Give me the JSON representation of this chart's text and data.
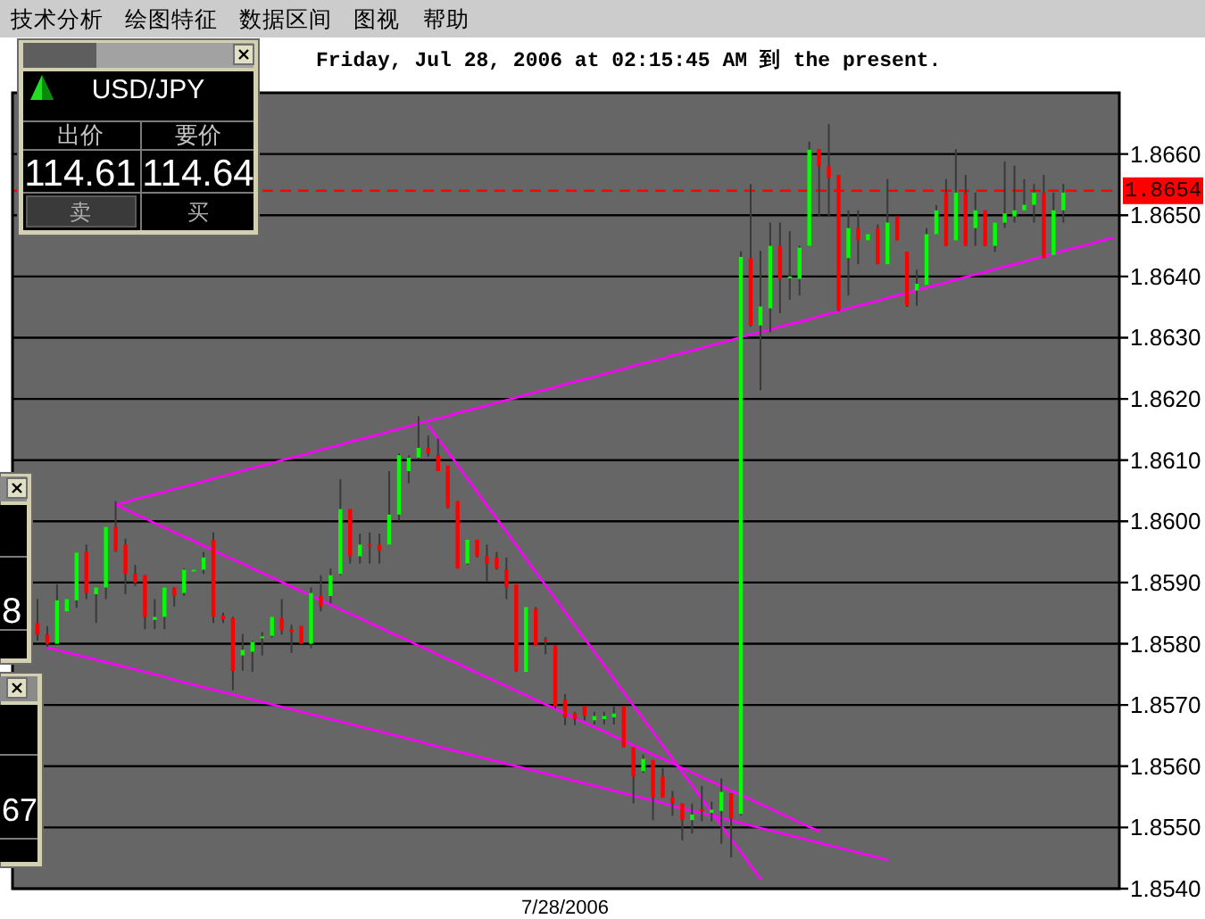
{
  "chart_data": [
    {
      "type": "candlestick",
      "title": "Friday, Jul 28, 2006 at 02:15:45 AM 到 the present.",
      "categories": [
        null,
        null,
        null,
        null,
        null,
        null,
        null,
        null,
        null,
        null,
        null,
        null,
        null,
        null,
        null,
        null,
        null,
        null,
        null,
        null,
        null,
        null,
        null,
        null,
        null,
        null,
        null,
        null,
        null,
        null,
        null,
        null,
        null,
        null,
        null,
        null,
        null,
        null,
        null,
        null,
        null,
        null,
        null,
        null,
        null,
        null,
        null,
        null,
        null,
        null,
        null,
        null,
        null,
        null,
        "7/28/2006",
        null,
        null,
        null,
        null,
        null,
        null,
        null,
        null,
        null,
        null,
        null,
        null,
        null,
        null,
        null,
        null,
        null,
        null,
        null,
        null,
        null,
        null,
        null,
        null,
        null,
        null,
        null,
        null,
        null,
        null,
        null,
        null,
        null,
        null,
        null,
        null,
        null,
        null,
        null,
        null,
        null,
        null,
        null,
        null,
        null,
        null,
        null,
        null,
        null,
        null,
        null,
        null,
        null,
        null,
        null,
        null
      ],
      "series": [
        {
          "type": "candlestick",
          "ohlc": [
            [
              1.85834,
              1.85873,
              1.85805,
              1.85815
            ],
            [
              1.85815,
              1.85829,
              1.85795,
              1.858
            ],
            [
              1.858,
              1.85897,
              1.858,
              1.85871
            ],
            [
              1.85853,
              1.85873,
              1.85853,
              1.85873
            ],
            [
              1.85871,
              1.85949,
              1.85859,
              1.85949
            ],
            [
              1.8595,
              1.85962,
              1.85873,
              1.85883
            ],
            [
              1.85881,
              1.85892,
              1.85834,
              1.85892
            ],
            [
              1.85892,
              1.85991,
              1.85873,
              1.85991
            ],
            [
              1.85991,
              1.86033,
              1.8595,
              1.85952
            ],
            [
              1.85962,
              1.85972,
              1.85881,
              1.85914
            ],
            [
              1.85914,
              1.85929,
              1.85894,
              1.859
            ],
            [
              1.85912,
              1.85912,
              1.85824,
              1.85844
            ],
            [
              1.85839,
              1.85873,
              1.85824,
              1.85844
            ],
            [
              1.85844,
              1.85892,
              1.85824,
              1.85892
            ],
            [
              1.85892,
              1.85892,
              1.85861,
              1.85878
            ],
            [
              1.85883,
              1.85923,
              1.85878,
              1.85921
            ],
            [
              1.85918,
              1.85921,
              1.85918,
              1.85921
            ],
            [
              1.85921,
              1.8595,
              1.85914,
              1.85941
            ],
            [
              1.8597,
              1.85982,
              1.85834,
              1.85844
            ],
            [
              1.85846,
              1.85851,
              1.85834,
              1.8584
            ],
            [
              1.85842,
              1.85844,
              1.85724,
              1.85756
            ],
            [
              1.85781,
              1.85816,
              1.85756,
              1.8579
            ],
            [
              1.85787,
              1.85805,
              1.85754,
              1.85803
            ],
            [
              1.8581,
              1.85819,
              1.85781,
              1.85812
            ],
            [
              1.85813,
              1.85844,
              1.8581,
              1.85844
            ],
            [
              1.85842,
              1.85873,
              1.85815,
              1.85822
            ],
            [
              1.85824,
              1.85831,
              1.85785,
              1.85819
            ],
            [
              1.85829,
              1.85829,
              1.858,
              1.858
            ],
            [
              1.858,
              1.85892,
              1.85793,
              1.85883
            ],
            [
              1.85878,
              1.85912,
              1.85853,
              1.85861
            ],
            [
              1.85878,
              1.85923,
              1.85866,
              1.85912
            ],
            [
              1.85914,
              1.86069,
              1.85912,
              1.8602
            ],
            [
              1.8602,
              1.8602,
              1.85931,
              1.85943
            ],
            [
              1.85943,
              1.8598,
              1.85931,
              1.85962
            ],
            [
              1.85962,
              1.85982,
              1.85931,
              1.8596
            ],
            [
              1.85962,
              1.8598,
              1.85931,
              1.85952
            ],
            [
              1.85962,
              1.86082,
              1.85962,
              1.86011
            ],
            [
              1.86011,
              1.86111,
              1.86001,
              1.86108
            ],
            [
              1.86082,
              1.86108,
              1.86062,
              1.86104
            ],
            [
              1.86104,
              1.86172,
              1.86101,
              1.8612
            ],
            [
              1.8612,
              1.8614,
              1.86106,
              1.86111
            ],
            [
              1.86108,
              1.86135,
              1.86082,
              1.86082
            ],
            [
              1.86091,
              1.86091,
              1.86021,
              1.86023
            ],
            [
              1.86033,
              1.86033,
              1.85923,
              1.85923
            ],
            [
              1.85931,
              1.8597,
              1.85929,
              1.8597
            ],
            [
              1.8597,
              1.8597,
              1.85941,
              1.85943
            ],
            [
              1.85943,
              1.85962,
              1.85902,
              1.85931
            ],
            [
              1.85941,
              1.8595,
              1.85921,
              1.85923
            ],
            [
              1.85921,
              1.85941,
              1.85873,
              1.85892
            ],
            [
              1.85897,
              1.85897,
              1.85754,
              1.85756
            ],
            [
              1.85754,
              1.8586,
              1.85754,
              1.8586
            ],
            [
              1.85857,
              1.8586,
              1.85797,
              1.85797
            ],
            [
              1.85808,
              1.85811,
              1.85783,
              1.85804
            ],
            [
              1.85797,
              1.85797,
              1.85694,
              1.85698
            ],
            [
              1.85709,
              1.85718,
              1.85667,
              1.8568
            ],
            [
              1.85687,
              1.85689,
              1.85667,
              1.85677
            ],
            [
              1.85698,
              1.85698,
              1.85675,
              1.85682
            ],
            [
              1.85675,
              1.85689,
              1.85668,
              1.85682
            ],
            [
              1.85677,
              1.85689,
              1.85668,
              1.85682
            ],
            [
              1.8568,
              1.85698,
              1.85668,
              1.85686
            ],
            [
              1.85698,
              1.85698,
              1.85631,
              1.85631
            ],
            [
              1.85631,
              1.85631,
              1.85539,
              1.85583
            ],
            [
              1.85592,
              1.85619,
              1.85589,
              1.85612
            ],
            [
              1.8561,
              1.8561,
              1.85512,
              1.85549
            ],
            [
              1.85583,
              1.85597,
              1.85549,
              1.85549
            ],
            [
              1.85549,
              1.8556,
              1.85519,
              1.85539
            ],
            [
              1.85539,
              1.85539,
              1.85479,
              1.85512
            ],
            [
              1.85512,
              1.85539,
              1.8549,
              1.85521
            ],
            [
              1.8553,
              1.85568,
              1.8551,
              1.85527
            ],
            [
              1.85524,
              1.85542,
              1.8551,
              1.85529
            ],
            [
              1.85527,
              1.8558,
              1.85473,
              1.85558
            ],
            [
              1.85556,
              1.85556,
              1.85451,
              1.85515
            ],
            [
              1.85522,
              1.86441,
              1.8552,
              1.86432
            ],
            [
              1.8643,
              1.86551,
              1.86318,
              1.8632
            ],
            [
              1.8632,
              1.86442,
              1.86214,
              1.86351
            ],
            [
              1.86348,
              1.86488,
              1.86309,
              1.8645
            ],
            [
              1.8645,
              1.86488,
              1.8634,
              1.86396
            ],
            [
              1.86397,
              1.86474,
              1.86362,
              1.864
            ],
            [
              1.86396,
              1.8645,
              1.86369,
              1.86447
            ],
            [
              1.8645,
              1.8662,
              1.8645,
              1.86607
            ],
            [
              1.86608,
              1.86608,
              1.86498,
              1.8658
            ],
            [
              1.8658,
              1.86649,
              1.86498,
              1.86561
            ],
            [
              1.86566,
              1.86566,
              1.86343,
              1.86345
            ],
            [
              1.8643,
              1.86508,
              1.86369,
              1.86479
            ],
            [
              1.86479,
              1.86508,
              1.8642,
              1.86459
            ],
            [
              1.86459,
              1.86469,
              1.86459,
              1.86469
            ],
            [
              1.86479,
              1.86485,
              1.8642,
              1.8642
            ],
            [
              1.8642,
              1.86559,
              1.8642,
              1.86488
            ],
            [
              1.86498,
              1.86498,
              1.86459,
              1.86459
            ],
            [
              1.8644,
              1.8644,
              1.8635,
              1.86352
            ],
            [
              1.86377,
              1.86411,
              1.86352,
              1.86388
            ],
            [
              1.86386,
              1.86479,
              1.86386,
              1.86469
            ],
            [
              1.86469,
              1.86517,
              1.86469,
              1.86508
            ],
            [
              1.86537,
              1.86559,
              1.8645,
              1.8645
            ],
            [
              1.86459,
              1.86608,
              1.86459,
              1.86537
            ],
            [
              1.86537,
              1.86566,
              1.8645,
              1.8645
            ],
            [
              1.86479,
              1.86537,
              1.8645,
              1.86508
            ],
            [
              1.86508,
              1.86508,
              1.8645,
              1.8645
            ],
            [
              1.8645,
              1.86488,
              1.8644,
              1.86488
            ],
            [
              1.86488,
              1.86588,
              1.86479,
              1.86503
            ],
            [
              1.86498,
              1.86581,
              1.86488,
              1.86508
            ],
            [
              1.86508,
              1.86559,
              1.86508,
              1.86517
            ],
            [
              1.86517,
              1.86551,
              1.86488,
              1.86537
            ],
            [
              1.86537,
              1.86566,
              1.8643,
              1.8643
            ],
            [
              1.86435,
              1.86537,
              1.86435,
              1.86508
            ],
            [
              1.86508,
              1.86551,
              1.86488,
              1.86537
            ],
            null,
            null,
            null,
            null,
            null
          ],
          "colors": [
            "#ff0000",
            "#ff0000",
            "#00ff00",
            "#00ff00",
            "#00ff00",
            "#ff0000",
            "#00ff00",
            "#00ff00",
            "#ff0000",
            "#ff0000",
            "#ff0000",
            "#ff0000",
            "#00ff00",
            "#00ff00",
            "#ff0000",
            "#00ff00",
            "#00ff00",
            "#00ff00",
            "#ff0000",
            "#ff0000",
            "#ff0000",
            "#00ff00",
            "#00ff00",
            "#00ff00",
            "#00ff00",
            "#ff0000",
            "#ff0000",
            "#ff0000",
            "#00ff00",
            "#ff0000",
            "#00ff00",
            "#00ff00",
            "#ff0000",
            "#00ff00",
            "#ff0000",
            "#ff0000",
            "#00ff00",
            "#00ff00",
            "#00ff00",
            "#00ff00",
            "#ff0000",
            "#ff0000",
            "#ff0000",
            "#ff0000",
            "#00ff00",
            "#ff0000",
            "#ff0000",
            "#ff0000",
            "#ff0000",
            "#ff0000",
            "#00ff00",
            "#ff0000",
            "#ff0000",
            "#ff0000",
            "#ff0000",
            "#ff0000",
            "#ff0000",
            "#00ff00",
            "#00ff00",
            "#00ff00",
            "#ff0000",
            "#ff0000",
            "#00ff00",
            "#ff0000",
            "#ff0000",
            "#ff0000",
            "#ff0000",
            "#00ff00",
            "#ff0000",
            "#00ff00",
            "#00ff00",
            "#ff0000",
            "#00ff00",
            "#ff0000",
            "#00ff00",
            "#00ff00",
            "#ff0000",
            "#00ff00",
            "#00ff00",
            "#00ff00",
            "#ff0000",
            "#ff0000",
            "#ff0000",
            "#00ff00",
            "#ff0000",
            "#00ff00",
            "#ff0000",
            "#00ff00",
            "#ff0000",
            "#ff0000",
            "#00ff00",
            "#00ff00",
            "#00ff00",
            "#ff0000",
            "#00ff00",
            "#ff0000",
            "#00ff00",
            "#ff0000",
            "#00ff00",
            "#00ff00",
            "#00ff00",
            "#00ff00",
            "#00ff00",
            "#ff0000",
            "#00ff00",
            "#00ff00",
            null,
            null,
            null,
            null,
            null
          ]
        },
        {
          "type": "line",
          "color": "#ff00ff",
          "values": [
            null,
            null,
            null,
            null,
            null,
            null,
            null,
            null,
            1.86027,
            1.86031,
            1.86036,
            1.8604,
            1.86044,
            1.86048,
            1.86053,
            1.86057,
            1.86061,
            1.86065,
            1.8607,
            1.86074,
            1.86078,
            1.86083,
            1.86087,
            1.86091,
            1.86095,
            1.861,
            1.86104,
            1.86108,
            1.86112,
            1.86117,
            1.86121,
            1.86125,
            1.8613,
            1.86134,
            1.86138,
            1.86142,
            1.86147,
            1.86151,
            1.86155,
            1.8616,
            1.86164,
            1.86168,
            1.86172,
            1.86177,
            1.86181,
            1.86185,
            1.86189,
            1.86194,
            1.86198,
            1.86202,
            1.86207,
            1.86211,
            1.86215,
            1.86219,
            1.86224,
            1.86228,
            1.86232,
            1.86236,
            1.86241,
            1.86245,
            1.86249,
            1.86254,
            1.86258,
            1.86262,
            1.86266,
            1.86271,
            1.86275,
            1.86279,
            1.86283,
            1.86288,
            1.86292,
            1.86296,
            1.86301,
            1.86305,
            1.86309,
            1.86313,
            1.86318,
            1.86322,
            1.86326,
            1.8633,
            1.86335,
            1.86339,
            1.86343,
            1.86348,
            1.86352,
            1.86356,
            1.8636,
            1.86365,
            1.86369,
            1.86373,
            1.86377,
            1.86382,
            1.86386,
            1.8639,
            1.86395,
            1.86399,
            1.86403,
            1.86407,
            1.86412,
            1.86416,
            1.8642,
            1.86424,
            1.86429,
            1.86433,
            1.86437,
            1.86442,
            1.86446,
            1.8645,
            1.86454,
            1.86459,
            1.86463
          ]
        },
        {
          "type": "line",
          "color": "#ff00ff",
          "values": [
            null,
            null,
            null,
            null,
            null,
            null,
            null,
            null,
            1.86027,
            1.8602,
            1.86012,
            1.86005,
            1.85997,
            1.8599,
            1.85982,
            1.85975,
            1.85968,
            1.8596,
            1.85953,
            1.85945,
            1.85938,
            1.85931,
            1.85923,
            1.85916,
            1.85908,
            1.85901,
            1.85893,
            1.85886,
            1.85879,
            1.85871,
            1.85864,
            1.85856,
            1.85849,
            1.85842,
            1.85834,
            1.85827,
            1.85819,
            1.85812,
            1.85805,
            1.85797,
            1.8579,
            1.85782,
            1.85775,
            1.85768,
            1.8576,
            1.85753,
            1.85745,
            1.85738,
            1.85731,
            1.85723,
            1.85716,
            1.85708,
            1.85701,
            1.85694,
            1.85686,
            1.85679,
            1.85671,
            1.85664,
            1.85657,
            1.85649,
            1.85642,
            1.85634,
            1.85627,
            1.85619,
            1.85612,
            1.85605,
            1.85597,
            1.8559,
            1.85582,
            1.85575,
            1.85568,
            1.8556,
            1.85553,
            1.85546,
            1.85538,
            1.85531,
            1.85523,
            1.85516,
            1.85508,
            1.85501,
            1.85494,
            null,
            null,
            null,
            null,
            null,
            null,
            null,
            null,
            null,
            null,
            null,
            null,
            null,
            null,
            null,
            null,
            null,
            null,
            null,
            null,
            null,
            null,
            null,
            null,
            null,
            null,
            null,
            null,
            null,
            null
          ]
        },
        {
          "type": "line",
          "color": "#ff00ff",
          "values": [
            null,
            1.85794,
            1.8579,
            1.85786,
            1.85782,
            1.85778,
            1.85774,
            1.8577,
            1.85766,
            1.85762,
            1.85758,
            1.85754,
            1.8575,
            1.85746,
            1.85741,
            1.85737,
            1.85733,
            1.85729,
            1.85725,
            1.85721,
            1.85717,
            1.85713,
            1.85709,
            1.85705,
            1.85701,
            1.85697,
            1.85693,
            1.85689,
            1.85685,
            1.85681,
            1.85677,
            1.85673,
            1.85669,
            1.85665,
            1.85661,
            1.85657,
            1.85653,
            1.85649,
            1.85645,
            1.85641,
            1.85636,
            1.85632,
            1.85628,
            1.85624,
            1.8562,
            1.85616,
            1.85612,
            1.85608,
            1.85604,
            1.856,
            1.85596,
            1.85592,
            1.85588,
            1.85584,
            1.8558,
            1.85576,
            1.85572,
            1.85568,
            1.85564,
            1.8556,
            1.85556,
            1.85552,
            1.85548,
            1.85544,
            1.8554,
            1.85535,
            1.85531,
            1.85527,
            1.85523,
            1.85519,
            1.85515,
            1.85511,
            1.85507,
            1.85503,
            1.85499,
            1.85495,
            1.85491,
            1.85487,
            1.85483,
            1.85479,
            1.85475,
            1.85471,
            1.85467,
            1.85463,
            1.85459,
            1.85455,
            1.85451,
            1.85447,
            null,
            null,
            null,
            null,
            null,
            null,
            null,
            null,
            null,
            null,
            null,
            null,
            null,
            null,
            null,
            null,
            null,
            null,
            null,
            null,
            null,
            null,
            null
          ]
        },
        {
          "type": "line",
          "color": "#ff00ff",
          "values": [
            null,
            null,
            null,
            null,
            null,
            null,
            null,
            null,
            null,
            null,
            null,
            null,
            null,
            null,
            null,
            null,
            null,
            null,
            null,
            null,
            null,
            null,
            null,
            null,
            null,
            null,
            null,
            null,
            null,
            null,
            null,
            null,
            null,
            null,
            null,
            null,
            null,
            null,
            null,
            null,
            1.86157,
            1.86135,
            1.86114,
            1.86092,
            1.8607,
            1.86048,
            1.86026,
            1.86005,
            1.85983,
            1.85961,
            1.85939,
            1.85917,
            1.85896,
            1.85874,
            1.85852,
            1.8583,
            1.85808,
            1.85787,
            1.85765,
            1.85743,
            1.85721,
            1.85699,
            1.85678,
            1.85656,
            1.85634,
            1.85612,
            1.8559,
            1.85569,
            1.85547,
            1.85525,
            1.85503,
            1.85481,
            1.8546,
            1.85438,
            1.85416,
            null,
            null,
            null,
            null,
            null,
            null,
            null,
            null,
            null,
            null,
            null,
            null,
            null,
            null,
            null,
            null,
            null,
            null,
            null,
            null,
            null,
            null,
            null,
            null,
            null,
            null,
            null,
            null,
            null,
            null,
            null,
            null,
            null,
            null,
            null,
            null
          ]
        }
      ],
      "ylim": [
        1.854,
        1.867
      ],
      "yticks": [
        {
          "value": 1.854,
          "label": "1.8540"
        },
        {
          "value": 1.855,
          "label": "1.8550"
        },
        {
          "value": 1.856,
          "label": "1.8560"
        },
        {
          "value": 1.857,
          "label": "1.8570"
        },
        {
          "value": 1.858,
          "label": "1.8580"
        },
        {
          "value": 1.859,
          "label": "1.8590"
        },
        {
          "value": 1.86,
          "label": "1.8600"
        },
        {
          "value": 1.861,
          "label": "1.8610"
        },
        {
          "value": 1.862,
          "label": "1.8620"
        },
        {
          "value": 1.863,
          "label": "1.8630"
        },
        {
          "value": 1.864,
          "label": "1.8640"
        },
        {
          "value": 1.865,
          "label": "1.8650"
        },
        {
          "value": 1.866,
          "label": "1.8660"
        }
      ],
      "grid": "y",
      "ref_lines": [
        {
          "axis": "y",
          "value": 1.8654,
          "label": "1.8654",
          "color": "#ff0000",
          "line_style": "dashed"
        }
      ]
    },
    {
      "type": "other",
      "annotations": [
        "技术分析",
        "绘图特征",
        "数据区间",
        "图视",
        "帮助"
      ]
    },
    {
      "type": "other",
      "title": "USD/JPY",
      "annotations": [
        "出价",
        "要价",
        "114.61",
        "114.64",
        "卖",
        "买"
      ]
    },
    {
      "type": "other",
      "annotations": [
        "8"
      ]
    },
    {
      "type": "other",
      "annotations": [
        "67"
      ]
    }
  ]
}
